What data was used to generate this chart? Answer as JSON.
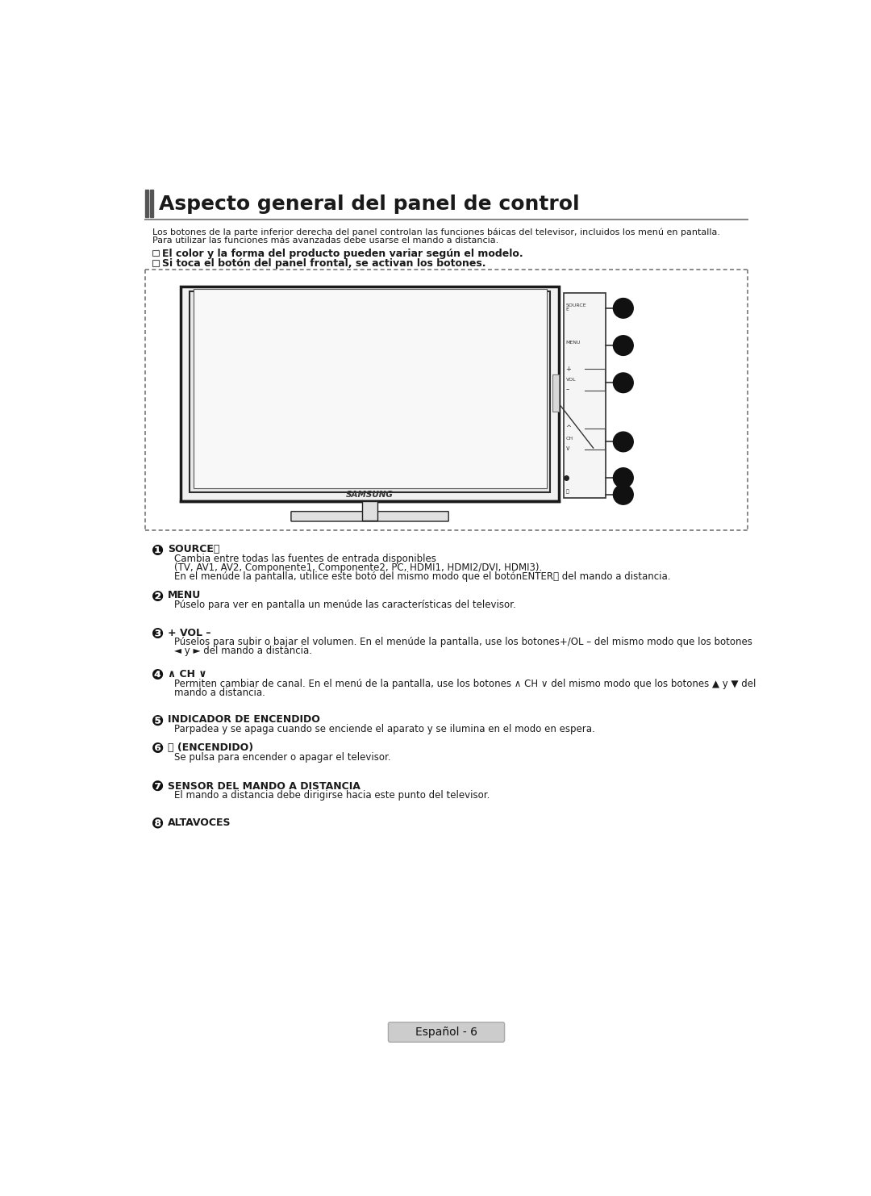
{
  "title": "Aspecto general del panel de control",
  "subtitle_line1": "Los botones de la parte inferior derecha del panel controlan las funciones báicas del televisor, incluidos los menú en pantalla.",
  "subtitle_line2": "Para utilizar las funciones más avanzadas debe usarse el mando a distancia.",
  "note1_text": "El color y la forma del producto pueden variar según el modelo.",
  "note2_text": "Si toca el botón del panel frontal, se activan los botones.",
  "items": [
    {
      "circle": "❶",
      "title": "SOURCE⓹",
      "lines": [
        "Cambia entre todas las fuentes de entrada disponibles",
        "(TV, AV1, AV2, Componente1, Componente2, PC, HDMI1, HDMI2/DVI, HDMI3).",
        "En el menúde la pantalla, utilice este botó del mismo modo que el botónENTER⓹ del mando a distancia."
      ]
    },
    {
      "circle": "❷",
      "title": "MENU",
      "lines": [
        "Púselo para ver en pantalla un menúde las características del televisor."
      ]
    },
    {
      "circle": "❸",
      "title": "+ VOL –",
      "lines": [
        "Púselos para subir o bajar el volumen. En el menúde la pantalla, use los botones+/OL – del mismo modo que los botones",
        "◄ y ► del mando a distancia."
      ]
    },
    {
      "circle": "❹",
      "title": "∧ CH ∨",
      "lines": [
        "Permiten cambiar de canal. En el menú de la pantalla, use los botones ∧ CH ∨ del mismo modo que los botones ▲ y ▼ del",
        "mando a distancia."
      ]
    },
    {
      "circle": "❺",
      "title": "INDICADOR DE ENCENDIDO",
      "lines": [
        "Parpadea y se apaga cuando se enciende el aparato y se ilumina en el modo en espera."
      ]
    },
    {
      "circle": "❻",
      "title": "⏻ (ENCENDIDO)",
      "lines": [
        "Se pulsa para encender o apagar el televisor."
      ]
    },
    {
      "circle": "❼",
      "title": "SENSOR DEL MANDO A DISTANCIA",
      "lines": [
        "El mando a distancia debe dirigirse hacia este punto del televisor."
      ]
    },
    {
      "circle": "❽",
      "title": "ALTAVOCES",
      "lines": []
    }
  ],
  "page_label": "Español - 6",
  "bg": "#ffffff",
  "fg": "#111111",
  "panel_labels": [
    "SOURCE\nE",
    "MENU",
    "+\nVOL",
    "∧\nCH\n∨",
    "●",
    "⏻"
  ]
}
